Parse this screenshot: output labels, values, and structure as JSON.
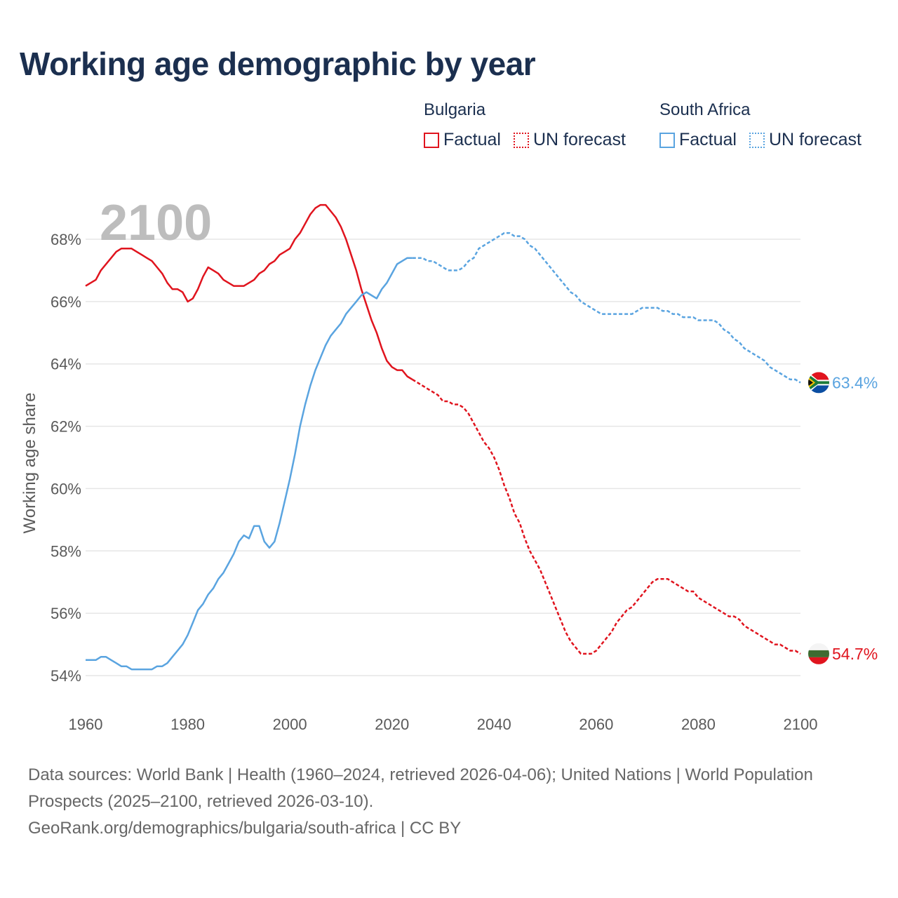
{
  "title": "Working age demographic by year",
  "legend": {
    "bulgaria": {
      "name": "Bulgaria",
      "factual": "Factual",
      "forecast": "UN forecast"
    },
    "south_africa": {
      "name": "South Africa",
      "factual": "Factual",
      "forecast": "UN forecast"
    }
  },
  "footer": {
    "sources": "Data sources: World Bank | Health (1960–2024, retrieved 2026-04-06); United Nations | World Population Prospects (2025–2100, retrieved 2026-03-10).",
    "attribution": "GeoRank.org/demographics/bulgaria/south-africa | CC BY"
  },
  "colors": {
    "bulgaria": "#e0141e",
    "south_africa": "#5aa4e0",
    "grid": "#e6e6e6"
  },
  "chart_data": {
    "type": "line",
    "title": "Working age demographic by year",
    "xlabel": "",
    "ylabel": "Working age share",
    "current_year": "2100",
    "xlim": [
      1960,
      2100
    ],
    "ylim": [
      53,
      69.5
    ],
    "x_ticks": [
      1960,
      1980,
      2000,
      2020,
      2040,
      2060,
      2080,
      2100
    ],
    "x_tick_labels": [
      "1960",
      "1980",
      "2000",
      "2020",
      "2040",
      "2060",
      "2080",
      "2100"
    ],
    "y_ticks": [
      54,
      56,
      58,
      60,
      62,
      64,
      66,
      68
    ],
    "y_tick_labels": [
      "54%",
      "56%",
      "58%",
      "60%",
      "62%",
      "64%",
      "66%",
      "68%"
    ],
    "grid": true,
    "series": [
      {
        "name": "Bulgaria",
        "color": "#e0141e",
        "end_label": "54.7%",
        "flag_icon": "bulgaria-flag-icon",
        "factual": {
          "x": [
            1960,
            1962,
            1963,
            1965,
            1966,
            1967,
            1968,
            1969,
            1970,
            1971,
            1972,
            1973,
            1974,
            1975,
            1976,
            1977,
            1978,
            1979,
            1980,
            1981,
            1982,
            1983,
            1984,
            1985,
            1986,
            1987,
            1988,
            1989,
            1990,
            1991,
            1992,
            1993,
            1994,
            1995,
            1996,
            1997,
            1998,
            1999,
            2000,
            2001,
            2002,
            2003,
            2004,
            2005,
            2006,
            2007,
            2008,
            2009,
            2010,
            2011,
            2012,
            2013,
            2014,
            2015,
            2016,
            2017,
            2018,
            2019,
            2020,
            2021,
            2022,
            2023,
            2024
          ],
          "y": [
            66.5,
            66.7,
            67.0,
            67.4,
            67.6,
            67.7,
            67.7,
            67.7,
            67.6,
            67.5,
            67.4,
            67.3,
            67.1,
            66.9,
            66.6,
            66.4,
            66.4,
            66.3,
            66.0,
            66.1,
            66.4,
            66.8,
            67.1,
            67.0,
            66.9,
            66.7,
            66.6,
            66.5,
            66.5,
            66.5,
            66.6,
            66.7,
            66.9,
            67.0,
            67.2,
            67.3,
            67.5,
            67.6,
            67.7,
            68.0,
            68.2,
            68.5,
            68.8,
            69.0,
            69.1,
            69.1,
            68.9,
            68.7,
            68.4,
            68.0,
            67.5,
            67.0,
            66.4,
            65.9,
            65.4,
            65.0,
            64.5,
            64.1,
            63.9,
            63.8,
            63.8,
            63.6,
            63.5
          ]
        },
        "forecast": {
          "x": [
            2024,
            2026,
            2028,
            2029,
            2030,
            2031,
            2032,
            2033,
            2034,
            2035,
            2036,
            2037,
            2038,
            2039,
            2040,
            2041,
            2042,
            2043,
            2044,
            2045,
            2046,
            2047,
            2048,
            2049,
            2050,
            2051,
            2052,
            2053,
            2054,
            2055,
            2056,
            2057,
            2058,
            2059,
            2060,
            2061,
            2062,
            2063,
            2064,
            2065,
            2066,
            2067,
            2068,
            2069,
            2070,
            2071,
            2072,
            2073,
            2074,
            2075,
            2076,
            2077,
            2078,
            2079,
            2080,
            2081,
            2082,
            2083,
            2084,
            2085,
            2086,
            2087,
            2088,
            2089,
            2090,
            2091,
            2092,
            2093,
            2094,
            2095,
            2096,
            2097,
            2098,
            2099,
            2100
          ],
          "y": [
            63.5,
            63.3,
            63.1,
            63.0,
            62.8,
            62.8,
            62.7,
            62.7,
            62.6,
            62.4,
            62.1,
            61.8,
            61.5,
            61.3,
            61.0,
            60.6,
            60.1,
            59.7,
            59.2,
            58.9,
            58.4,
            58.0,
            57.7,
            57.4,
            57.0,
            56.6,
            56.2,
            55.8,
            55.4,
            55.1,
            54.9,
            54.7,
            54.7,
            54.7,
            54.8,
            55.0,
            55.2,
            55.4,
            55.7,
            55.9,
            56.1,
            56.2,
            56.4,
            56.6,
            56.8,
            57.0,
            57.1,
            57.1,
            57.1,
            57.0,
            56.9,
            56.8,
            56.7,
            56.7,
            56.5,
            56.4,
            56.3,
            56.2,
            56.1,
            56.0,
            55.9,
            55.9,
            55.8,
            55.6,
            55.5,
            55.4,
            55.3,
            55.2,
            55.1,
            55.0,
            55.0,
            54.9,
            54.8,
            54.8,
            54.7
          ]
        }
      },
      {
        "name": "South Africa",
        "color": "#5aa4e0",
        "end_label": "63.4%",
        "flag_icon": "south-africa-flag-icon",
        "factual": {
          "x": [
            1960,
            1962,
            1963,
            1964,
            1965,
            1966,
            1967,
            1968,
            1969,
            1970,
            1971,
            1972,
            1973,
            1974,
            1975,
            1976,
            1977,
            1978,
            1979,
            1980,
            1981,
            1982,
            1983,
            1984,
            1985,
            1986,
            1987,
            1988,
            1989,
            1990,
            1991,
            1992,
            1993,
            1994,
            1995,
            1996,
            1997,
            1998,
            1999,
            2000,
            2001,
            2002,
            2003,
            2004,
            2005,
            2006,
            2007,
            2008,
            2009,
            2010,
            2011,
            2012,
            2013,
            2014,
            2015,
            2016,
            2017,
            2018,
            2019,
            2020,
            2021,
            2022,
            2023,
            2024
          ],
          "y": [
            54.5,
            54.5,
            54.6,
            54.6,
            54.5,
            54.4,
            54.3,
            54.3,
            54.2,
            54.2,
            54.2,
            54.2,
            54.2,
            54.3,
            54.3,
            54.4,
            54.6,
            54.8,
            55.0,
            55.3,
            55.7,
            56.1,
            56.3,
            56.6,
            56.8,
            57.1,
            57.3,
            57.6,
            57.9,
            58.3,
            58.5,
            58.4,
            58.8,
            58.8,
            58.3,
            58.1,
            58.3,
            58.9,
            59.6,
            60.3,
            61.1,
            62.0,
            62.7,
            63.3,
            63.8,
            64.2,
            64.6,
            64.9,
            65.1,
            65.3,
            65.6,
            65.8,
            66.0,
            66.2,
            66.3,
            66.2,
            66.1,
            66.4,
            66.6,
            66.9,
            67.2,
            67.3,
            67.4,
            67.4
          ]
        },
        "forecast": {
          "x": [
            2024,
            2026,
            2027,
            2028,
            2029,
            2030,
            2031,
            2032,
            2033,
            2034,
            2035,
            2036,
            2037,
            2038,
            2039,
            2040,
            2041,
            2042,
            2043,
            2044,
            2045,
            2046,
            2047,
            2048,
            2049,
            2050,
            2051,
            2052,
            2053,
            2054,
            2055,
            2056,
            2057,
            2058,
            2059,
            2060,
            2061,
            2062,
            2063,
            2064,
            2065,
            2066,
            2067,
            2068,
            2069,
            2070,
            2071,
            2072,
            2073,
            2074,
            2075,
            2076,
            2077,
            2078,
            2079,
            2080,
            2081,
            2082,
            2083,
            2084,
            2085,
            2086,
            2087,
            2088,
            2089,
            2090,
            2091,
            2092,
            2093,
            2094,
            2095,
            2096,
            2097,
            2098,
            2099,
            2100
          ],
          "y": [
            67.4,
            67.4,
            67.3,
            67.3,
            67.2,
            67.1,
            67.0,
            67.0,
            67.0,
            67.1,
            67.3,
            67.4,
            67.7,
            67.8,
            67.9,
            68.0,
            68.1,
            68.2,
            68.2,
            68.1,
            68.1,
            68.0,
            67.8,
            67.7,
            67.5,
            67.3,
            67.1,
            66.9,
            66.7,
            66.5,
            66.3,
            66.2,
            66.0,
            65.9,
            65.8,
            65.7,
            65.6,
            65.6,
            65.6,
            65.6,
            65.6,
            65.6,
            65.6,
            65.7,
            65.8,
            65.8,
            65.8,
            65.8,
            65.7,
            65.7,
            65.6,
            65.6,
            65.5,
            65.5,
            65.5,
            65.4,
            65.4,
            65.4,
            65.4,
            65.3,
            65.1,
            65.0,
            64.8,
            64.7,
            64.5,
            64.4,
            64.3,
            64.2,
            64.1,
            63.9,
            63.8,
            63.7,
            63.6,
            63.5,
            63.5,
            63.4
          ]
        }
      }
    ]
  }
}
